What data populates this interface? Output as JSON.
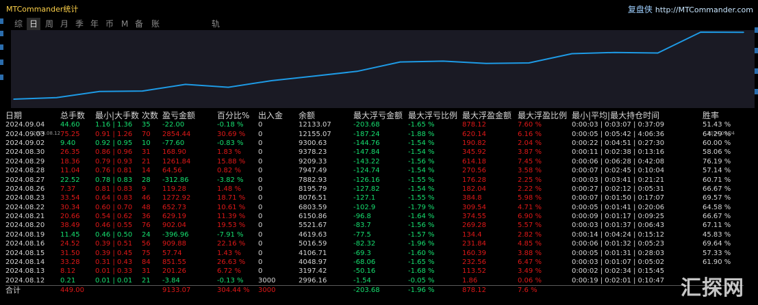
{
  "window": {
    "title": "MTCommander统计"
  },
  "brand": {
    "name": "复盘侠",
    "url": "http://MTCommander.com"
  },
  "tabs": [
    {
      "label": "综",
      "active": false
    },
    {
      "label": "日",
      "active": true
    },
    {
      "label": "周",
      "active": false
    },
    {
      "label": "月",
      "active": false
    },
    {
      "label": "季",
      "active": false
    },
    {
      "label": "年",
      "active": false
    },
    {
      "label": "币",
      "active": false
    },
    {
      "label": "M",
      "active": false
    },
    {
      "label": "备",
      "active": false
    },
    {
      "label": "账户",
      "active": false
    },
    {
      "label": "轨迹",
      "active": false
    }
  ],
  "chart_data": {
    "type": "line",
    "x": [
      "2024.08.12",
      "2024.08.13",
      "2024.08.14",
      "2024.08.15",
      "2024.08.16",
      "2024.08.19",
      "2024.08.20",
      "2024.08.21",
      "2024.08.22",
      "2024.08.23",
      "2024.08.26",
      "2024.08.27",
      "2024.08.28",
      "2024.08.29",
      "2024.08.30",
      "2024.09.02",
      "2024.09.03",
      "2024.09.04"
    ],
    "series": [
      {
        "values": [
          3000,
          3201.26,
          4052.81,
          4110.55,
          5020.42,
          4623.44,
          5525.46,
          6154.65,
          6807.38,
          8080.28,
          8199.54,
          7886.61,
          7951.17,
          9213.01,
          9380.66,
          9303.26,
          12157.7,
          12135.68
        ]
      }
    ],
    "x_labels": [
      "2024.08.12",
      "2024.09.04"
    ],
    "color": "#1e9be6",
    "background": "#1a1a24",
    "grid": false
  },
  "table": {
    "columns": [
      "日期",
      "总手数",
      "最小|大手数",
      "次数",
      "盈亏金额",
      "百分比%",
      "出入金",
      "余额",
      "最大浮亏金额",
      "最大浮亏比例",
      "最大浮盈金额",
      "最大浮盈比例",
      "最小|平均|最大持仓时间",
      "胜率"
    ],
    "rows": [
      {
        "date": "2024.09.04",
        "lots": "44.60",
        "minmax": "1.16 | 1.36",
        "count": "35",
        "pnl": "-22.00",
        "pct": "-0.18 %",
        "io": "0",
        "balance": "12133.07",
        "maxdd": "-203.68",
        "maxdd_pct": "-1.65 %",
        "maxfp": "878.12",
        "maxfp_pct": "7.60 %",
        "hold": "0:00:03 | 0:03:07 | 0:37:09",
        "winrate": "51.43 %",
        "sign": "neg"
      },
      {
        "date": "2024.09.03",
        "lots": "75.25",
        "minmax": "0.91 | 1.26",
        "count": "70",
        "pnl": "2854.44",
        "pct": "30.69 %",
        "io": "0",
        "balance": "12155.07",
        "maxdd": "-187.24",
        "maxdd_pct": "-1.88 %",
        "maxfp": "620.14",
        "maxfp_pct": "6.16 %",
        "hold": "0:00:05 | 0:05:42 | 4:06:36",
        "winrate": "64.29 %",
        "sign": "pos"
      },
      {
        "date": "2024.09.02",
        "lots": "9.40",
        "minmax": "0.92 | 0.95",
        "count": "10",
        "pnl": "-77.60",
        "pct": "-0.83 %",
        "io": "0",
        "balance": "9300.63",
        "maxdd": "-144.76",
        "maxdd_pct": "-1.54 %",
        "maxfp": "190.82",
        "maxfp_pct": "2.04 %",
        "hold": "0:00:22 | 0:04:51 | 0:27:30",
        "winrate": "60.00 %",
        "sign": "neg"
      },
      {
        "date": "2024.08.30",
        "lots": "26.35",
        "minmax": "0.86 | 0.96",
        "count": "31",
        "pnl": "168.90",
        "pct": "1.83 %",
        "io": "0",
        "balance": "9378.23",
        "maxdd": "-147.84",
        "maxdd_pct": "-1.54 %",
        "maxfp": "345.92",
        "maxfp_pct": "3.87 %",
        "hold": "0:00:11 | 0:02:38 | 0:13:16",
        "winrate": "58.06 %",
        "sign": "pos"
      },
      {
        "date": "2024.08.29",
        "lots": "18.36",
        "minmax": "0.79 | 0.93",
        "count": "21",
        "pnl": "1261.84",
        "pct": "15.88 %",
        "io": "0",
        "balance": "9209.33",
        "maxdd": "-143.22",
        "maxdd_pct": "-1.56 %",
        "maxfp": "614.18",
        "maxfp_pct": "7.45 %",
        "hold": "0:00:06 | 0:06:28 | 0:42:08",
        "winrate": "76.19 %",
        "sign": "pos"
      },
      {
        "date": "2024.08.28",
        "lots": "11.04",
        "minmax": "0.76 | 0.81",
        "count": "14",
        "pnl": "64.56",
        "pct": "0.82 %",
        "io": "0",
        "balance": "7947.49",
        "maxdd": "-124.74",
        "maxdd_pct": "-1.54 %",
        "maxfp": "270.56",
        "maxfp_pct": "3.58 %",
        "hold": "0:00:07 | 0:02:45 | 0:10:04",
        "winrate": "57.14 %",
        "sign": "pos"
      },
      {
        "date": "2024.08.27",
        "lots": "22.52",
        "minmax": "0.78 | 0.83",
        "count": "28",
        "pnl": "-312.86",
        "pct": "-3.82 %",
        "io": "0",
        "balance": "7882.93",
        "maxdd": "-126.16",
        "maxdd_pct": "-1.55 %",
        "maxfp": "176.28",
        "maxfp_pct": "2.25 %",
        "hold": "0:00:03 | 0:03:41 | 0:21:21",
        "winrate": "60.71 %",
        "sign": "neg"
      },
      {
        "date": "2024.08.26",
        "lots": "7.37",
        "minmax": "0.81 | 0.83",
        "count": "9",
        "pnl": "119.28",
        "pct": "1.48 %",
        "io": "0",
        "balance": "8195.79",
        "maxdd": "-127.82",
        "maxdd_pct": "-1.54 %",
        "maxfp": "182.04",
        "maxfp_pct": "2.22 %",
        "hold": "0:00:27 | 0:02:12 | 0:05:31",
        "winrate": "66.67 %",
        "sign": "pos"
      },
      {
        "date": "2024.08.23",
        "lots": "33.54",
        "minmax": "0.64 | 0.83",
        "count": "46",
        "pnl": "1272.92",
        "pct": "18.71 %",
        "io": "0",
        "balance": "8076.51",
        "maxdd": "-127.1",
        "maxdd_pct": "-1.55 %",
        "maxfp": "384.8",
        "maxfp_pct": "5.98 %",
        "hold": "0:00:07 | 0:01:50 | 0:17:07",
        "winrate": "69.57 %",
        "sign": "pos"
      },
      {
        "date": "2024.08.22",
        "lots": "30.34",
        "minmax": "0.60 | 0.70",
        "count": "48",
        "pnl": "652.73",
        "pct": "10.61 %",
        "io": "0",
        "balance": "6803.59",
        "maxdd": "-102.9",
        "maxdd_pct": "-1.79 %",
        "maxfp": "309.54",
        "maxfp_pct": "4.71 %",
        "hold": "0:00:05 | 0:01:41 | 0:20:06",
        "winrate": "64.58 %",
        "sign": "pos"
      },
      {
        "date": "2024.08.21",
        "lots": "20.66",
        "minmax": "0.54 | 0.62",
        "count": "36",
        "pnl": "629.19",
        "pct": "11.39 %",
        "io": "0",
        "balance": "6150.86",
        "maxdd": "-96.8",
        "maxdd_pct": "-1.64 %",
        "maxfp": "374.55",
        "maxfp_pct": "6.90 %",
        "hold": "0:00:09 | 0:01:17 | 0:09:25",
        "winrate": "66.67 %",
        "sign": "pos"
      },
      {
        "date": "2024.08.20",
        "lots": "38.49",
        "minmax": "0.46 | 0.55",
        "count": "76",
        "pnl": "902.04",
        "pct": "19.53 %",
        "io": "0",
        "balance": "5521.67",
        "maxdd": "-83.7",
        "maxdd_pct": "-1.56 %",
        "maxfp": "269.28",
        "maxfp_pct": "5.57 %",
        "hold": "0:00:03 | 0:01:37 | 0:06:43",
        "winrate": "67.11 %",
        "sign": "pos"
      },
      {
        "date": "2024.08.19",
        "lots": "11.45",
        "minmax": "0.46 | 0.50",
        "count": "24",
        "pnl": "-396.96",
        "pct": "-7.91 %",
        "io": "0",
        "balance": "4619.63",
        "maxdd": "-77.5",
        "maxdd_pct": "-1.57 %",
        "maxfp": "134.4",
        "maxfp_pct": "2.82 %",
        "hold": "0:00:14 | 0:04:24 | 0:15:12",
        "winrate": "45.83 %",
        "sign": "neg"
      },
      {
        "date": "2024.08.16",
        "lots": "24.52",
        "minmax": "0.39 | 0.51",
        "count": "56",
        "pnl": "909.88",
        "pct": "22.16 %",
        "io": "0",
        "balance": "5016.59",
        "maxdd": "-82.32",
        "maxdd_pct": "-1.96 %",
        "maxfp": "231.84",
        "maxfp_pct": "4.85 %",
        "hold": "0:00:06 | 0:01:32 | 0:05:23",
        "winrate": "69.64 %",
        "sign": "pos"
      },
      {
        "date": "2024.08.15",
        "lots": "31.50",
        "minmax": "0.39 | 0.45",
        "count": "75",
        "pnl": "57.74",
        "pct": "1.43 %",
        "io": "0",
        "balance": "4106.71",
        "maxdd": "-69.3",
        "maxdd_pct": "-1.60 %",
        "maxfp": "160.39",
        "maxfp_pct": "3.88 %",
        "hold": "0:00:05 | 0:01:31 | 0:28:03",
        "winrate": "57.33 %",
        "sign": "pos"
      },
      {
        "date": "2024.08.14",
        "lots": "33.28",
        "minmax": "0.31 | 0.43",
        "count": "84",
        "pnl": "851.55",
        "pct": "26.63 %",
        "io": "0",
        "balance": "4048.97",
        "maxdd": "-68.06",
        "maxdd_pct": "-1.65 %",
        "maxfp": "232.56",
        "maxfp_pct": "6.47 %",
        "hold": "0:00:03 | 0:01:07 | 0:05:02",
        "winrate": "61.90 %",
        "sign": "pos"
      },
      {
        "date": "2024.08.13",
        "lots": "8.12",
        "minmax": "0.01 | 0.33",
        "count": "31",
        "pnl": "201.26",
        "pct": "6.72 %",
        "io": "0",
        "balance": "3197.42",
        "maxdd": "-50.16",
        "maxdd_pct": "-1.68 %",
        "maxfp": "113.52",
        "maxfp_pct": "3.49 %",
        "hold": "0:00:02 | 0:02:34 | 0:15:45",
        "winrate": "",
        "sign": "pos"
      },
      {
        "date": "2024.08.12",
        "lots": "0.21",
        "minmax": "0.01 | 0.01",
        "count": "21",
        "pnl": "-3.84",
        "pct": "-0.13 %",
        "io": "3000",
        "balance": "2996.16",
        "maxdd": "-1.54",
        "maxdd_pct": "-0.05 %",
        "maxfp": "1.86",
        "maxfp_pct": "0.06 %",
        "hold": "0:00:19 | 0:02:01 | 0:10:47",
        "winrate": "",
        "sign": "neg"
      }
    ],
    "total": {
      "label": "合计",
      "lots": "449.00",
      "pnl": "9133.07",
      "pct": "304.44 %",
      "io": "3000",
      "maxdd": "-203.68",
      "maxdd_pct": "-1.96 %",
      "maxfp": "878.12",
      "maxfp_pct": "7.6 %"
    }
  },
  "watermark": "汇探网",
  "colors": {
    "profit": "#e01818",
    "loss": "#16e070",
    "title": "#ffd24a",
    "line": "#1e9be6"
  }
}
